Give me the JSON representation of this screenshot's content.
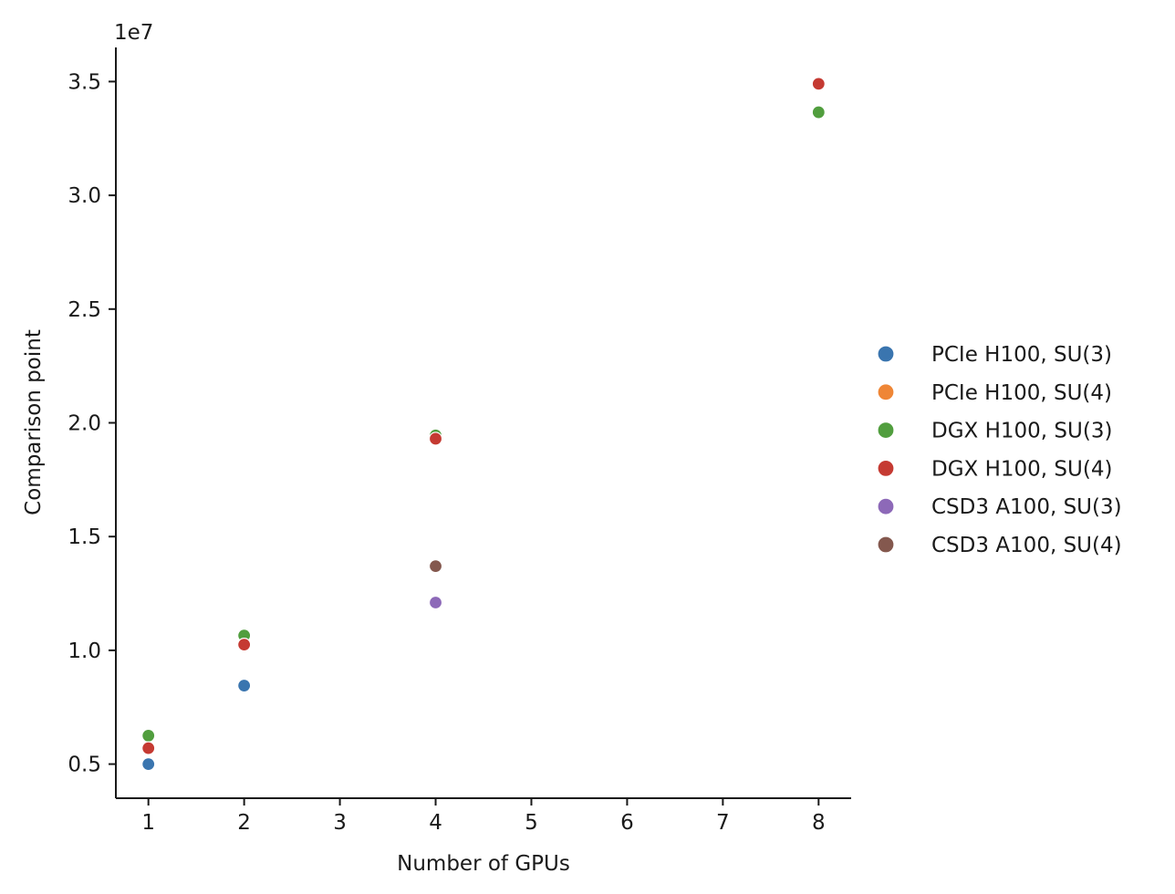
{
  "chart_data": {
    "type": "scatter",
    "xlabel": "Number of GPUs",
    "ylabel": "Comparison point",
    "y_offset_label": "1e7",
    "y_scale_factor": 10000000,
    "xlim": [
      0.66,
      8.34
    ],
    "ylim": [
      3500000,
      36500000
    ],
    "x_ticks": [
      1,
      2,
      3,
      4,
      5,
      6,
      7,
      8
    ],
    "x_tick_labels": [
      "1",
      "2",
      "3",
      "4",
      "5",
      "6",
      "7",
      "8"
    ],
    "y_ticks": [
      5000000,
      10000000,
      15000000,
      20000000,
      25000000,
      30000000,
      35000000
    ],
    "y_tick_labels": [
      "0.5",
      "1.0",
      "1.5",
      "2.0",
      "2.5",
      "3.0",
      "3.5"
    ],
    "grid": false,
    "legend_position": "right",
    "series": [
      {
        "name": "PCIe H100, SU(3)",
        "color": "#3a75af",
        "points": [
          [
            1,
            5000000
          ],
          [
            2,
            8450000
          ]
        ]
      },
      {
        "name": "PCIe H100, SU(4)",
        "color": "#ef8636",
        "points": []
      },
      {
        "name": "DGX H100, SU(3)",
        "color": "#519e3e",
        "points": [
          [
            1,
            6250000
          ],
          [
            2,
            10650000
          ],
          [
            4,
            19450000
          ],
          [
            8,
            33650000
          ]
        ]
      },
      {
        "name": "DGX H100, SU(4)",
        "color": "#c53a32",
        "points": [
          [
            1,
            5700000
          ],
          [
            2,
            10250000
          ],
          [
            4,
            19300000
          ],
          [
            8,
            34900000
          ]
        ]
      },
      {
        "name": "CSD3 A100, SU(3)",
        "color": "#8d69b8",
        "points": [
          [
            4,
            12100000
          ]
        ]
      },
      {
        "name": "CSD3 A100, SU(4)",
        "color": "#84584e",
        "points": [
          [
            4,
            13700000
          ]
        ]
      }
    ]
  }
}
